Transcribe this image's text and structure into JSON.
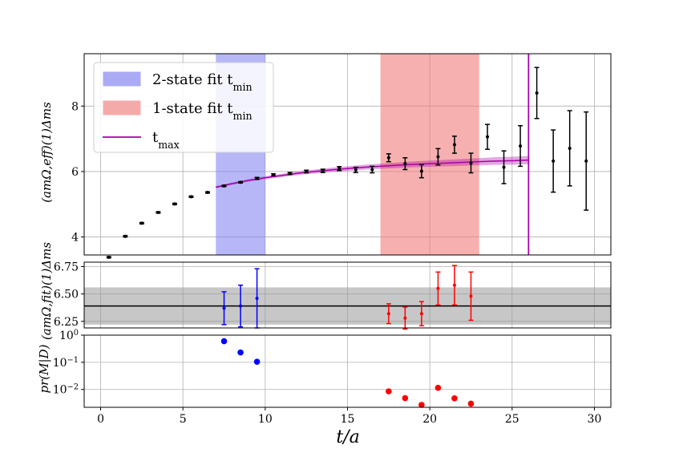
{
  "chart_data": [
    {
      "type": "scatter",
      "panel": "top",
      "ylabel": "(amΩ,eff)(1)Δms",
      "xlabel": "t/a",
      "xlim": [
        -1,
        31
      ],
      "ylim": [
        3.45,
        9.6
      ],
      "yticks": [
        4,
        6,
        8
      ],
      "grid": true,
      "legend_position": "top-left",
      "legend": [
        {
          "label": "2-state fit t",
          "sub": "min",
          "kind": "patch",
          "color": "#aaaaf5"
        },
        {
          "label": "1-state fit t",
          "sub": "min",
          "kind": "patch",
          "color": "#f5aaaa"
        },
        {
          "label": "t",
          "sub": "max",
          "kind": "line",
          "color": "#aa00aa"
        }
      ],
      "bands": [
        {
          "x0": 7,
          "x1": 10,
          "color": "#7b7bf2",
          "opacity": 0.55
        },
        {
          "x0": 17,
          "x1": 23,
          "color": "#f27b7b",
          "opacity": 0.6
        }
      ],
      "tmax": 26,
      "fit_curve": {
        "x": [
          7.0,
          8.0,
          9.0,
          10.0,
          11.0,
          12.0,
          13.0,
          14.0,
          15.0,
          16.0,
          17.0,
          18.0,
          19.0,
          20.0,
          21.0,
          22.0,
          23.0,
          24.0,
          25.0,
          26.0
        ],
        "y": [
          5.52,
          5.63,
          5.73,
          5.81,
          5.88,
          5.95,
          6.0,
          6.05,
          6.09,
          6.13,
          6.16,
          6.19,
          6.22,
          6.24,
          6.26,
          6.28,
          6.3,
          6.32,
          6.33,
          6.35
        ],
        "err": [
          0.03,
          0.035,
          0.04,
          0.045,
          0.05,
          0.055,
          0.06,
          0.065,
          0.07,
          0.075,
          0.08,
          0.085,
          0.09,
          0.095,
          0.1,
          0.105,
          0.11,
          0.115,
          0.12,
          0.125
        ],
        "color": "#aa00aa"
      },
      "points": {
        "x": [
          0.5,
          1.5,
          2.5,
          3.5,
          4.5,
          5.5,
          6.5,
          7.5,
          8.5,
          9.5,
          10.5,
          11.5,
          12.5,
          13.5,
          14.5,
          15.5,
          16.5,
          17.5,
          18.5,
          19.5,
          20.5,
          21.5,
          22.5,
          23.5,
          24.5,
          25.5,
          26.5,
          27.5,
          28.5,
          29.5
        ],
        "y": [
          3.38,
          4.02,
          4.42,
          4.75,
          5.01,
          5.23,
          5.36,
          5.56,
          5.67,
          5.79,
          5.9,
          5.94,
          6.0,
          6.02,
          6.09,
          6.05,
          6.06,
          6.42,
          6.24,
          6.01,
          6.45,
          6.82,
          6.26,
          7.06,
          6.13,
          6.78,
          8.4,
          6.32,
          6.71,
          6.32
        ],
        "err": [
          0.02,
          0.02,
          0.02,
          0.02,
          0.02,
          0.02,
          0.02,
          0.02,
          0.02,
          0.03,
          0.03,
          0.03,
          0.04,
          0.05,
          0.06,
          0.08,
          0.1,
          0.12,
          0.18,
          0.2,
          0.25,
          0.26,
          0.3,
          0.38,
          0.5,
          0.62,
          0.78,
          0.95,
          1.15,
          1.5
        ],
        "color": "#000000"
      }
    },
    {
      "type": "scatter",
      "panel": "middle",
      "ylabel": "(amΩ,fit)(1)Δms",
      "xlim": [
        -1,
        31
      ],
      "ylim": [
        6.19,
        6.79
      ],
      "yticks": [
        6.25,
        6.5,
        6.75
      ],
      "grid": true,
      "band": {
        "center": 6.39,
        "err": 0.17,
        "color": "#999999",
        "opacity": 0.55
      },
      "series": [
        {
          "name": "2-state",
          "color": "#0000ff",
          "x": [
            7.5,
            8.5,
            9.5
          ],
          "y": [
            6.37,
            6.39,
            6.46
          ],
          "err": [
            0.15,
            0.19,
            0.27
          ]
        },
        {
          "name": "1-state",
          "color": "#ff0000",
          "x": [
            17.5,
            18.5,
            19.5,
            20.5,
            21.5,
            22.5
          ],
          "y": [
            6.32,
            6.28,
            6.32,
            6.55,
            6.58,
            6.48
          ],
          "err": [
            0.09,
            0.1,
            0.11,
            0.15,
            0.18,
            0.22
          ]
        }
      ]
    },
    {
      "type": "scatter",
      "panel": "bottom",
      "ylabel": "pr(M|D)",
      "xlabel": "t/a",
      "yscale": "log",
      "xlim": [
        -1,
        31
      ],
      "ylim": [
        0.0022,
        1.0
      ],
      "yticks": [
        {
          "value": 1.0,
          "base": "10",
          "exp": "0"
        },
        {
          "value": 0.1,
          "base": "10",
          "exp": "−1"
        },
        {
          "value": 0.01,
          "base": "10",
          "exp": "−2"
        }
      ],
      "xticks": [
        0,
        5,
        10,
        15,
        20,
        25,
        30
      ],
      "grid": true,
      "series": [
        {
          "name": "2-state",
          "color": "#0000ff",
          "x": [
            7.5,
            8.5,
            9.5
          ],
          "y": [
            0.6,
            0.23,
            0.105
          ]
        },
        {
          "name": "1-state",
          "color": "#ff0000",
          "x": [
            17.5,
            18.5,
            19.5,
            20.5,
            21.5,
            22.5
          ],
          "y": [
            0.0085,
            0.0048,
            0.0027,
            0.0115,
            0.0047,
            0.003
          ]
        }
      ]
    }
  ]
}
